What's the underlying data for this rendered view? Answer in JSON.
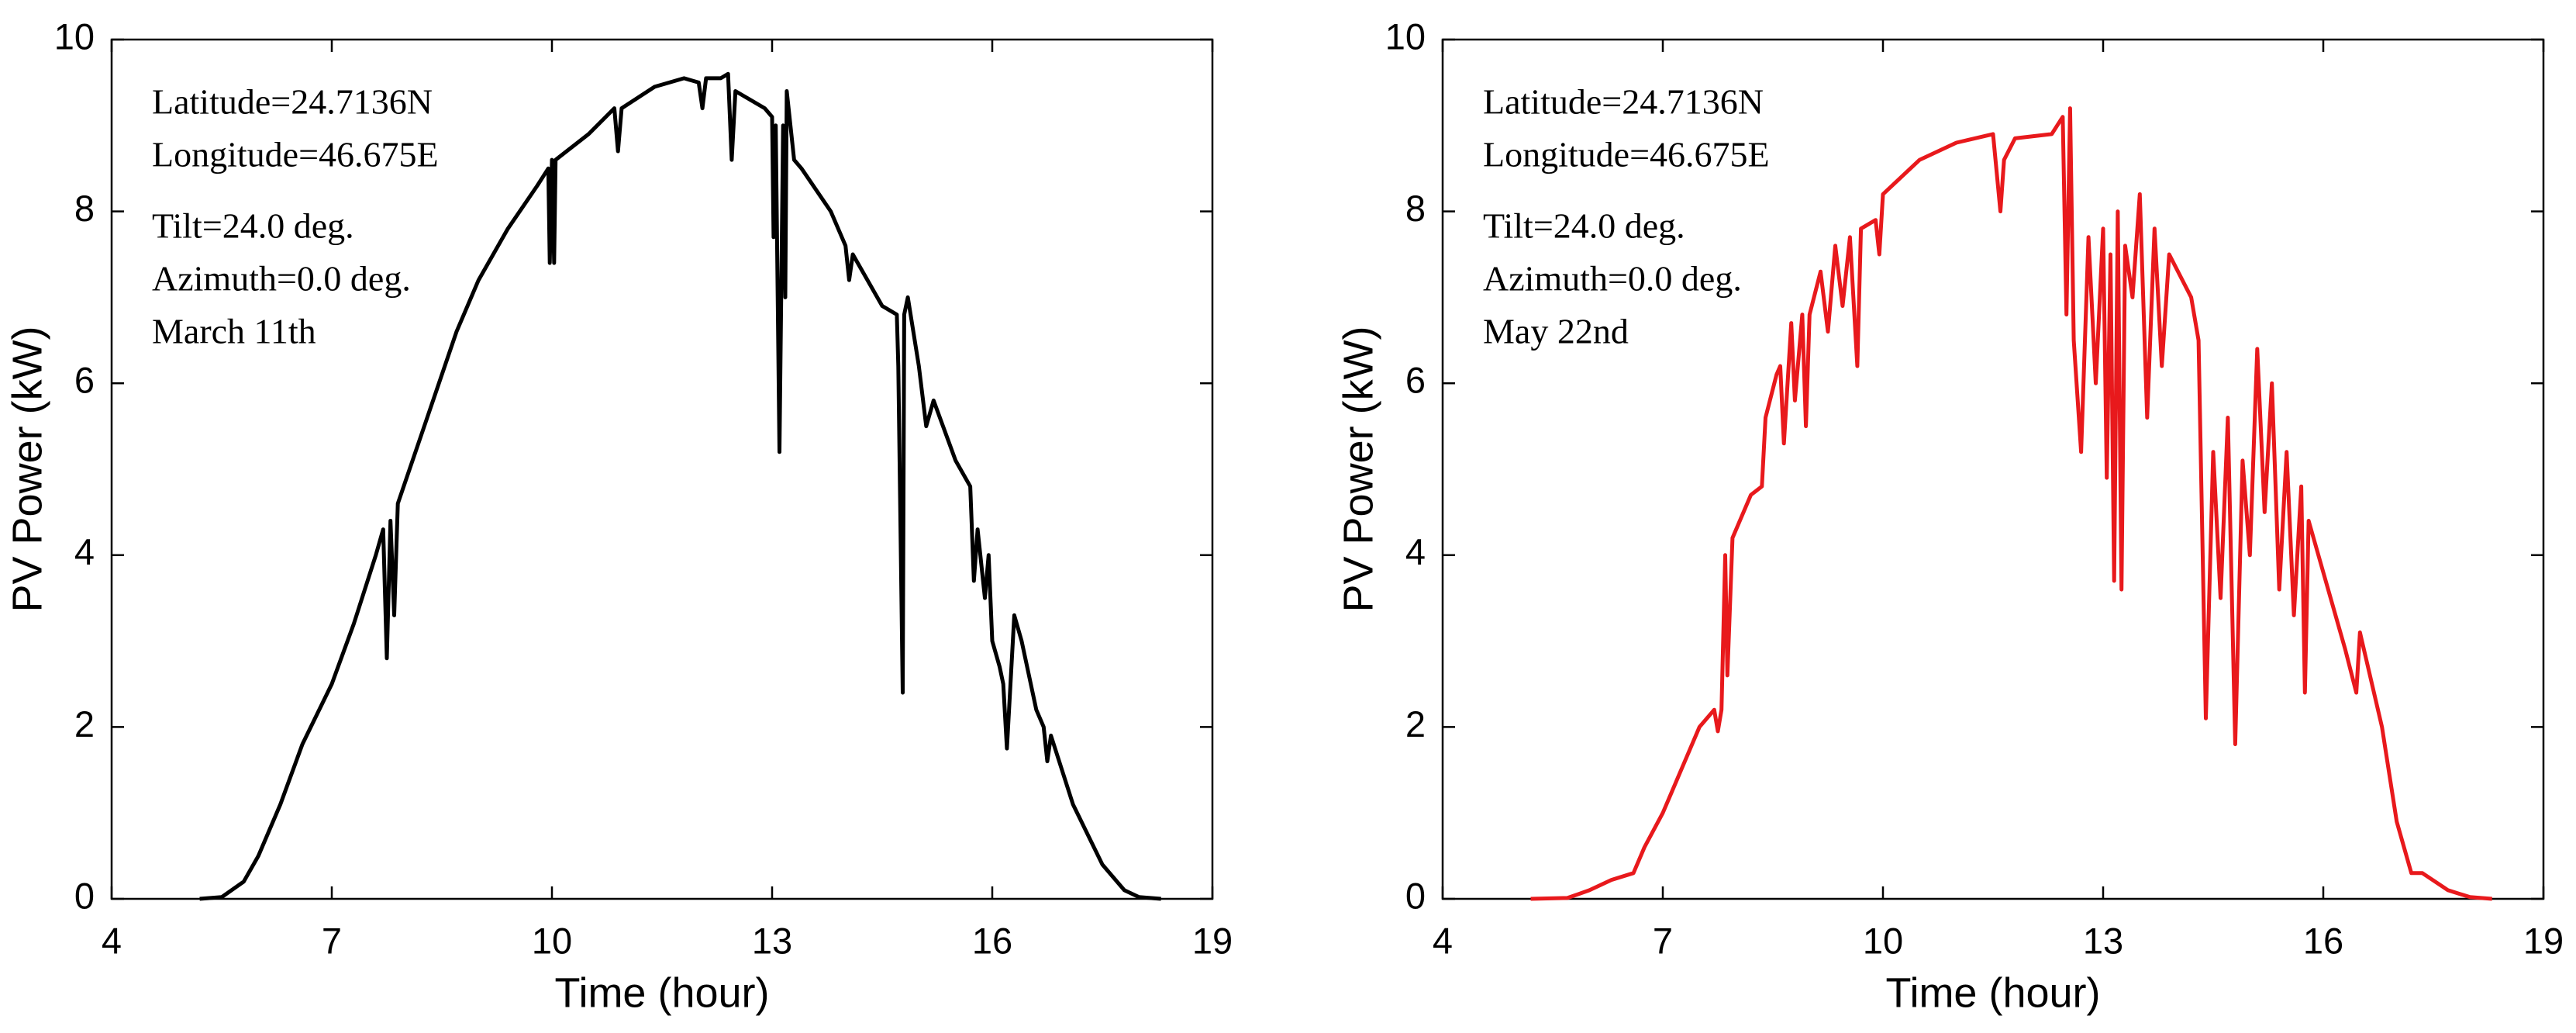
{
  "chart_data": [
    {
      "type": "line",
      "xlabel": "Time (hour)",
      "ylabel": "PV Power (kW)",
      "annotations": [
        "Latitude=24.7136N",
        "Longitude=46.675E",
        "Tilt=24.0 deg.",
        "Azimuth=0.0 deg.",
        "March 11th"
      ],
      "xlim": [
        4,
        19
      ],
      "xticks": [
        4,
        7,
        10,
        13,
        16,
        19
      ],
      "ylim": [
        0,
        10
      ],
      "yticks": [
        0,
        2,
        4,
        6,
        8,
        10
      ],
      "x": [
        5.2,
        5.5,
        5.8,
        6.0,
        6.3,
        6.6,
        7.0,
        7.3,
        7.6,
        7.7,
        7.75,
        7.8,
        7.85,
        7.9,
        8.3,
        8.7,
        9.0,
        9.4,
        9.8,
        9.95,
        9.97,
        10.0,
        10.03,
        10.05,
        10.5,
        10.85,
        10.9,
        10.95,
        11.4,
        11.8,
        12.0,
        12.05,
        12.1,
        12.3,
        12.4,
        12.45,
        12.5,
        12.9,
        13.0,
        13.02,
        13.05,
        13.1,
        13.15,
        13.18,
        13.2,
        13.3,
        13.4,
        13.8,
        14.0,
        14.05,
        14.1,
        14.5,
        14.7,
        14.72,
        14.78,
        14.8,
        14.85,
        15.0,
        15.1,
        15.2,
        15.5,
        15.7,
        15.75,
        15.8,
        15.9,
        15.95,
        16.0,
        16.1,
        16.15,
        16.2,
        16.3,
        16.4,
        16.6,
        16.7,
        16.75,
        16.8,
        17.1,
        17.5,
        17.8,
        18.0,
        18.3
      ],
      "series": [
        {
          "color": "#000000",
          "values": [
            0,
            0.02,
            0.2,
            0.5,
            1.1,
            1.8,
            2.5,
            3.2,
            4.0,
            4.3,
            2.8,
            4.4,
            3.3,
            4.6,
            5.6,
            6.6,
            7.2,
            7.8,
            8.3,
            8.5,
            7.4,
            8.6,
            7.4,
            8.6,
            8.9,
            9.2,
            8.7,
            9.2,
            9.45,
            9.55,
            9.5,
            9.2,
            9.55,
            9.55,
            9.6,
            8.6,
            9.4,
            9.2,
            9.1,
            7.7,
            9.0,
            5.2,
            9.0,
            7.0,
            9.4,
            8.6,
            8.5,
            8.0,
            7.6,
            7.2,
            7.5,
            6.9,
            6.8,
            6.2,
            2.4,
            6.8,
            7.0,
            6.2,
            5.5,
            5.8,
            5.1,
            4.8,
            3.7,
            4.3,
            3.5,
            4.0,
            3.0,
            2.7,
            2.5,
            1.75,
            3.3,
            3.0,
            2.2,
            2.0,
            1.6,
            1.9,
            1.1,
            0.4,
            0.1,
            0.02,
            0
          ]
        }
      ]
    },
    {
      "type": "line",
      "xlabel": "Time (hour)",
      "ylabel": "PV Power (kW)",
      "annotations": [
        "Latitude=24.7136N",
        "Longitude=46.675E",
        "Tilt=24.0 deg.",
        "Azimuth=0.0 deg.",
        "May 22nd"
      ],
      "xlim": [
        4,
        19
      ],
      "xticks": [
        4,
        7,
        10,
        13,
        16,
        19
      ],
      "ylim": [
        0,
        10
      ],
      "yticks": [
        0,
        2,
        4,
        6,
        8,
        10
      ],
      "x": [
        5.2,
        5.7,
        6.0,
        6.3,
        6.6,
        6.75,
        7.0,
        7.3,
        7.5,
        7.7,
        7.75,
        7.8,
        7.85,
        7.88,
        7.95,
        8.2,
        8.35,
        8.4,
        8.55,
        8.6,
        8.65,
        8.75,
        8.8,
        8.9,
        8.95,
        9.0,
        9.15,
        9.25,
        9.35,
        9.45,
        9.55,
        9.65,
        9.7,
        9.9,
        9.95,
        10.0,
        10.5,
        11.0,
        11.5,
        11.6,
        11.65,
        11.8,
        12.3,
        12.45,
        12.5,
        12.55,
        12.6,
        12.7,
        12.8,
        12.9,
        13.0,
        13.05,
        13.1,
        13.15,
        13.2,
        13.25,
        13.3,
        13.4,
        13.5,
        13.6,
        13.7,
        13.8,
        13.9,
        14.2,
        14.3,
        14.4,
        14.5,
        14.6,
        14.7,
        14.8,
        14.9,
        15.0,
        15.1,
        15.2,
        15.3,
        15.4,
        15.5,
        15.6,
        15.7,
        15.75,
        15.8,
        16.0,
        16.3,
        16.45,
        16.5,
        16.8,
        17.0,
        17.2,
        17.35,
        17.7,
        18.0,
        18.3
      ],
      "series": [
        {
          "color": "#e8191c",
          "values": [
            0,
            0.01,
            0.1,
            0.22,
            0.3,
            0.6,
            1.0,
            1.6,
            2.0,
            2.2,
            1.95,
            2.2,
            4.0,
            2.6,
            4.2,
            4.7,
            4.8,
            5.6,
            6.1,
            6.2,
            5.3,
            6.7,
            5.8,
            6.8,
            5.5,
            6.8,
            7.3,
            6.6,
            7.6,
            6.9,
            7.7,
            6.2,
            7.8,
            7.9,
            7.5,
            8.2,
            8.6,
            8.8,
            8.9,
            8.0,
            8.6,
            8.85,
            8.9,
            9.1,
            6.8,
            9.2,
            6.5,
            5.2,
            7.7,
            6.0,
            7.8,
            4.9,
            7.5,
            3.7,
            8.0,
            3.6,
            7.6,
            7.0,
            8.2,
            5.6,
            7.8,
            6.2,
            7.5,
            7.0,
            6.5,
            2.1,
            5.2,
            3.5,
            5.6,
            1.8,
            5.1,
            4.0,
            6.4,
            4.5,
            6.0,
            3.6,
            5.2,
            3.3,
            4.8,
            2.4,
            4.4,
            3.8,
            2.9,
            2.4,
            3.1,
            2.0,
            0.9,
            0.3,
            0.3,
            0.1,
            0.02,
            0
          ]
        }
      ]
    }
  ]
}
